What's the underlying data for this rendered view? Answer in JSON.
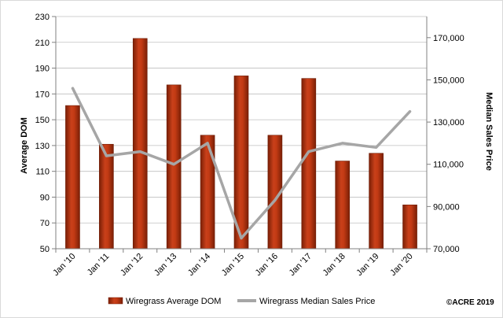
{
  "chart_data": {
    "type": "bar",
    "categories": [
      "Jan '10",
      "Jan '11",
      "Jan '12",
      "Jan '13",
      "Jan '14",
      "Jan '15",
      "Jan '16",
      "Jan '17",
      "Jan '18",
      "Jan '19",
      "Jan '20"
    ],
    "series": [
      {
        "name": "Wiregrass Average DOM",
        "type": "bar",
        "axis": "left",
        "color": "#B8350F",
        "values": [
          161,
          131,
          213,
          177,
          138,
          184,
          138,
          182,
          118,
          124,
          84
        ]
      },
      {
        "name": "Wiregrass Median Sales Price",
        "type": "line",
        "axis": "right",
        "color": "#A6A6A6",
        "values": [
          146000,
          114000,
          116000,
          110000,
          120000,
          75000,
          93000,
          116000,
          120000,
          118000,
          135000
        ]
      }
    ],
    "ylabel": "Average DOM",
    "y2label": "Median Sales Price",
    "ylim": [
      50,
      230
    ],
    "yticks": [
      50,
      70,
      90,
      110,
      130,
      150,
      170,
      190,
      210,
      230
    ],
    "ytick_labels": [
      "50",
      "70",
      "90",
      "110",
      "130",
      "150",
      "170",
      "190",
      "210",
      "230"
    ],
    "y2lim": [
      70000,
      180000
    ],
    "y2ticks": [
      70000,
      90000,
      110000,
      130000,
      150000,
      170000
    ],
    "y2tick_labels": [
      "70,000",
      "90,000",
      "110,000",
      "130,000",
      "150,000",
      "170,000"
    ],
    "grid": true,
    "legend": "bottom",
    "annotation": "©ACRE 2019"
  }
}
